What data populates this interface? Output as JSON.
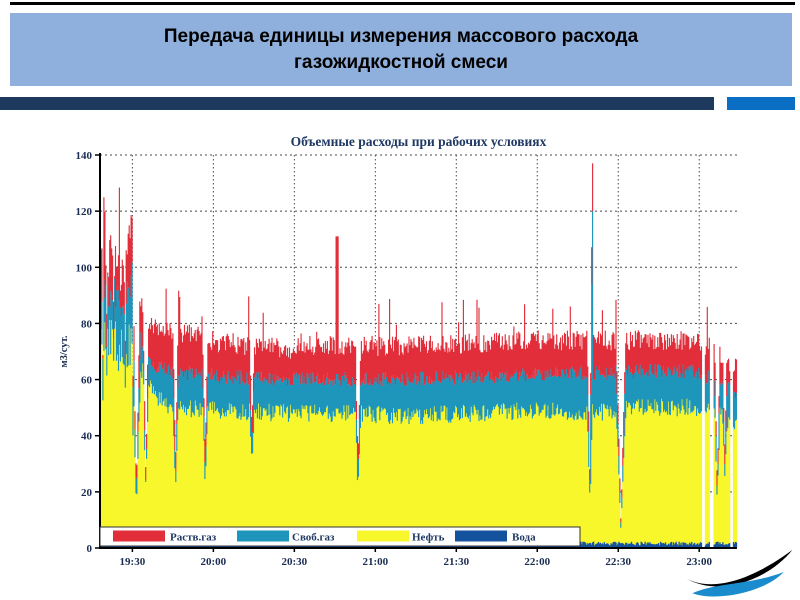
{
  "slide": {
    "title_line1": "Передача единицы измерения массового расхода",
    "title_line2": "газожидкостной смеси",
    "title_bg": "#8fb0dc",
    "bar_color": "#1d3a5e",
    "accent_color": "#0b6ec5"
  },
  "chart_data": {
    "type": "area",
    "stacked": true,
    "title": "Объемные расходы при рабочих условиях",
    "ylabel": "м3/сут.",
    "xlabel": "",
    "ylim": [
      0,
      140
    ],
    "yticks": [
      0,
      20,
      40,
      60,
      80,
      100,
      120,
      140
    ],
    "x_start": "19:18",
    "x_end": "23:14",
    "duration_minutes": 236,
    "xticks": [
      {
        "label": "19:30",
        "t": 12
      },
      {
        "label": "20:00",
        "t": 42
      },
      {
        "label": "20:30",
        "t": 72
      },
      {
        "label": "21:00",
        "t": 102
      },
      {
        "label": "21:30",
        "t": 132
      },
      {
        "label": "22:00",
        "t": 162
      },
      {
        "label": "22:30",
        "t": 192
      },
      {
        "label": "23:00",
        "t": 222
      }
    ],
    "grid": true,
    "legend_position": "bottom-inside",
    "legend": [
      {
        "label": "Раств.газ",
        "color": "#e12e3a"
      },
      {
        "label": "Своб.газ",
        "color": "#1e95ba"
      },
      {
        "label": "Нефть",
        "color": "#f7f72b"
      },
      {
        "label": "Вода",
        "color": "#15529e"
      }
    ],
    "layers_bottom_to_top": [
      "Вода",
      "Нефть",
      "Своб.газ",
      "Раств.газ"
    ],
    "water_level": 1.6,
    "keyframes": {
      "t": [
        0,
        5,
        9,
        12,
        14,
        16,
        20,
        26,
        45,
        70,
        88,
        96,
        110,
        140,
        160,
        181,
        200,
        218,
        228,
        236
      ],
      "oil_top": [
        76,
        74,
        68,
        74,
        68,
        60,
        55,
        50,
        49,
        48,
        48,
        48,
        47,
        48,
        49,
        48,
        50,
        50,
        48,
        44
      ],
      "gas_top": [
        92,
        91,
        86,
        97,
        88,
        68,
        65,
        63,
        61,
        60,
        60,
        60,
        60,
        61,
        62,
        62,
        63,
        63,
        60,
        55
      ],
      "red_top": [
        107,
        105,
        98,
        115,
        105,
        80,
        79,
        78,
        73,
        71,
        72,
        72,
        72,
        73,
        74,
        74,
        74,
        74,
        71,
        64
      ]
    },
    "dips": [
      [
        13.5,
        1.5,
        19
      ],
      [
        17,
        0.9,
        24
      ],
      [
        28,
        0.9,
        30
      ],
      [
        39,
        0.9,
        33
      ],
      [
        56.3,
        0.8,
        42
      ],
      [
        95.6,
        1.0,
        31
      ],
      [
        181.5,
        0.9,
        25
      ],
      [
        193,
        1.7,
        9
      ],
      [
        228.7,
        0.9,
        22
      ],
      [
        231.5,
        0.8,
        36
      ]
    ],
    "spikes": [
      [
        87.8,
        0.45,
        62,
        111
      ],
      [
        182.3,
        0.5,
        120,
        137
      ]
    ],
    "gaps": [
      [
        223.0,
        224.2
      ],
      [
        226.0,
        227.4
      ],
      [
        233.6,
        234.4
      ]
    ],
    "noise": {
      "oil": 3.2,
      "gas": 2.6,
      "red": 3.6,
      "water": 0.7,
      "early_boost_until": 13,
      "early_factor": 2.6
    },
    "colors": {
      "grid": "#4a4a4a",
      "axis": "#000000",
      "tick_text": "#1a2c52",
      "title_text": "#1f3864",
      "legend_text": "#1f3864",
      "legend_border": "#333333"
    }
  },
  "logo": {
    "name": "wave-logo",
    "swoosh_color": "#000000",
    "wave_color": "#1a8ccd"
  }
}
